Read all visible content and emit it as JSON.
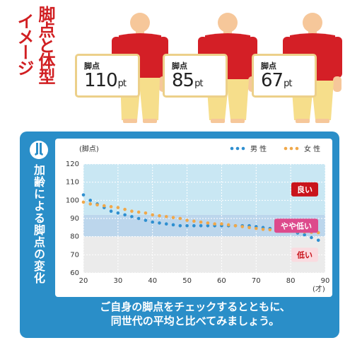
{
  "heading": {
    "line1": "脚点と体型",
    "line2": "イメージ"
  },
  "figures": [
    {
      "label": "脚点",
      "value": "110",
      "unit": "pt"
    },
    {
      "label": "脚点",
      "value": "85",
      "unit": "pt"
    },
    {
      "label": "脚点",
      "value": "67",
      "unit": "pt"
    }
  ],
  "side_title": "加齢による脚点の変化",
  "caption": {
    "line1": "ご自身の脚点をチェックするとともに、",
    "line2": "同世代の平均と比べてみましょう。"
  },
  "colors": {
    "heading": "#d11f22",
    "shirt": "#d41f26",
    "pants": "#f6de8b",
    "skin": "#f6c79a",
    "panel": "#2a8ec8",
    "male": "#2f8fd0",
    "female": "#f0a84a",
    "zone_good": "#c9e7f3",
    "zone_fair": "#bcd6ec",
    "zone_low": "#ebebeb",
    "badge_good": "#c9141c",
    "badge_fair": "#dd4a8c",
    "badge_low": "#fadbe0"
  },
  "chart_data": {
    "type": "scatter",
    "ylabel": "(脚点)",
    "xlabel": "(才)",
    "xlim": [
      20,
      90
    ],
    "ylim": [
      60,
      120
    ],
    "x_ticks": [
      20,
      30,
      40,
      50,
      60,
      70,
      80,
      90
    ],
    "y_ticks": [
      60,
      70,
      80,
      90,
      100,
      110,
      120
    ],
    "grid": true,
    "legend_position": "top-right",
    "zones": [
      {
        "label": "良い",
        "from": 92,
        "to": 120
      },
      {
        "label": "やや低い",
        "from": 80,
        "to": 92
      },
      {
        "label": "低い",
        "from": 60,
        "to": 80
      }
    ],
    "series": [
      {
        "name": "男 性",
        "x": [
          20,
          22,
          24,
          26,
          28,
          30,
          32,
          34,
          36,
          38,
          40,
          42,
          44,
          46,
          48,
          50,
          52,
          54,
          56,
          58,
          60,
          62,
          64,
          66,
          68,
          70,
          72,
          74,
          76,
          78,
          80,
          82,
          84,
          86,
          88
        ],
        "y": [
          103,
          100,
          98,
          96,
          94,
          93,
          92,
          91,
          90,
          89,
          88,
          87.5,
          87,
          86.5,
          86,
          86,
          86,
          86,
          86,
          86,
          86,
          86,
          86,
          86,
          86,
          85.5,
          85,
          84.5,
          84,
          83.5,
          83,
          82,
          81,
          79.5,
          78
        ]
      },
      {
        "name": "女 性",
        "x": [
          20,
          22,
          24,
          26,
          28,
          30,
          32,
          34,
          36,
          38,
          40,
          42,
          44,
          46,
          48,
          50,
          52,
          54,
          56,
          58,
          60,
          62,
          64,
          66,
          68,
          70,
          72,
          74,
          76,
          78,
          80,
          82,
          84,
          86,
          88
        ],
        "y": [
          99,
          98,
          97.5,
          97,
          96.5,
          96,
          95,
          94,
          93.5,
          93,
          92,
          91.5,
          91,
          90.5,
          90,
          89,
          88.5,
          88,
          87.5,
          87,
          87,
          86.5,
          86,
          85.5,
          85,
          84.5,
          84,
          83.8,
          83.5,
          83.2,
          83,
          82.8,
          82.6,
          82.4,
          82.2
        ]
      }
    ]
  }
}
